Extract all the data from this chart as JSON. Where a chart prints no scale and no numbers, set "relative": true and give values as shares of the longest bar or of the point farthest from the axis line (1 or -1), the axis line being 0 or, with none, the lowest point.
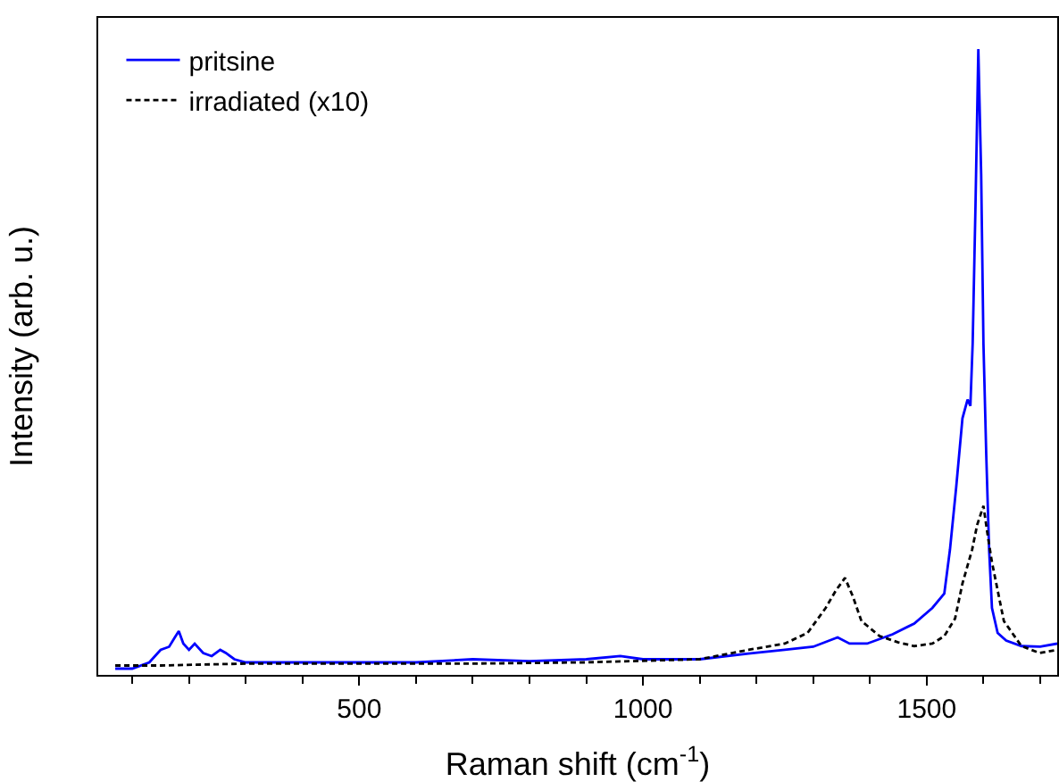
{
  "chart_data": {
    "type": "line",
    "relative": true,
    "xlabel": "Raman shift (cm$^{-1}$)",
    "ylabel": "Intensity (arb. u.)",
    "xlim": [
      40,
      1730
    ],
    "xticks": [
      500,
      1000,
      1500
    ],
    "tick_labels": "x",
    "legend": "top left",
    "grid": false,
    "series": [
      {
        "name": "pritsine",
        "color": "#0000ff",
        "line_style": "solid",
        "x": [
          70,
          100,
          130,
          150,
          165,
          175,
          182,
          190,
          200,
          210,
          225,
          240,
          255,
          265,
          280,
          300,
          350,
          400,
          500,
          600,
          700,
          800,
          900,
          960,
          1000,
          1100,
          1186,
          1250,
          1300,
          1343,
          1364,
          1395,
          1440,
          1478,
          1510,
          1531,
          1541,
          1552,
          1563,
          1572,
          1577,
          1581,
          1586,
          1591,
          1596,
          1600,
          1605,
          1610,
          1615,
          1625,
          1640,
          1667,
          1700,
          1730
        ],
        "values": [
          0.01,
          0.01,
          0.02,
          0.04,
          0.045,
          0.06,
          0.07,
          0.05,
          0.04,
          0.05,
          0.035,
          0.03,
          0.04,
          0.035,
          0.025,
          0.02,
          0.02,
          0.02,
          0.02,
          0.02,
          0.025,
          0.022,
          0.025,
          0.03,
          0.025,
          0.025,
          0.034,
          0.04,
          0.045,
          0.06,
          0.05,
          0.05,
          0.065,
          0.082,
          0.107,
          0.13,
          0.2,
          0.3,
          0.41,
          0.44,
          0.43,
          0.53,
          0.75,
          1.0,
          0.8,
          0.53,
          0.35,
          0.2,
          0.107,
          0.067,
          0.055,
          0.046,
          0.045,
          0.05
        ]
      },
      {
        "name": "irradiated (x10)",
        "color": "#000000",
        "line_style": "dashed",
        "x": [
          70,
          150,
          300,
          500,
          700,
          900,
          1100,
          1186,
          1250,
          1290,
          1322,
          1340,
          1356,
          1370,
          1385,
          1417,
          1450,
          1478,
          1510,
          1531,
          1550,
          1563,
          1580,
          1589,
          1600,
          1608,
          1615,
          1636,
          1667,
          1699,
          1730
        ],
        "values": [
          0.015,
          0.015,
          0.018,
          0.018,
          0.018,
          0.02,
          0.025,
          0.04,
          0.05,
          0.067,
          0.107,
          0.135,
          0.155,
          0.125,
          0.086,
          0.062,
          0.052,
          0.046,
          0.05,
          0.062,
          0.09,
          0.146,
          0.2,
          0.24,
          0.27,
          0.22,
          0.18,
          0.086,
          0.046,
          0.035,
          0.04
        ]
      }
    ]
  }
}
